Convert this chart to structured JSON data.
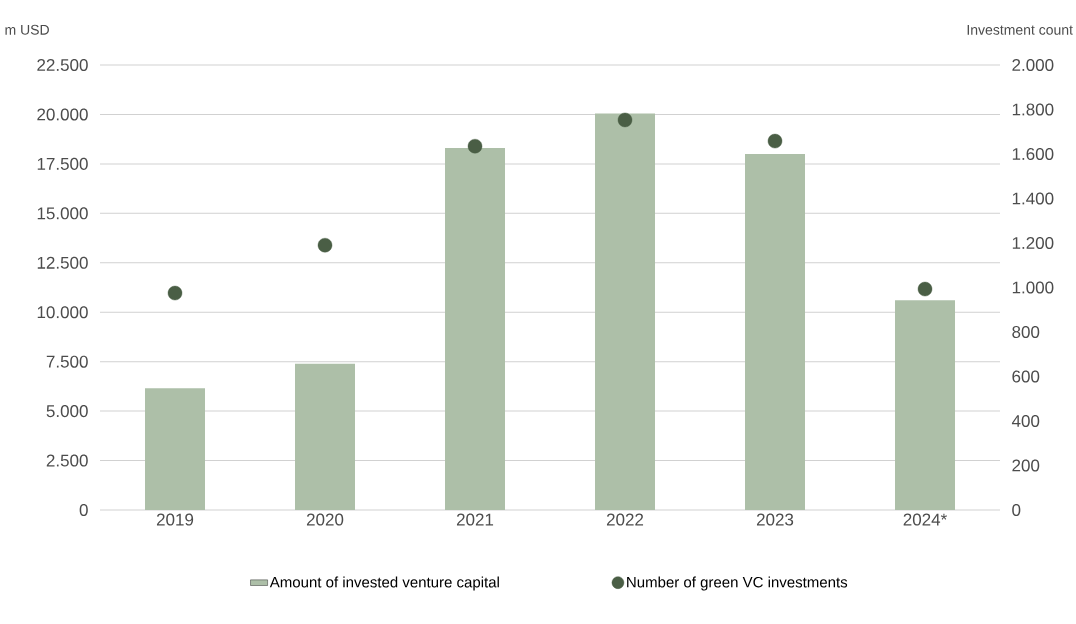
{
  "chart_data": {
    "type": "bar",
    "ylabel": "m USD",
    "y2label": "Investment count",
    "categories": [
      "2019",
      "2020",
      "2021",
      "2022",
      "2023",
      "2024*"
    ],
    "series": [
      {
        "name": "Amount of invested venture capital",
        "color": "#adbfa8",
        "values": [
          6150,
          7400,
          18300,
          20050,
          18000,
          10600
        ]
      },
      {
        "name": "Number of green VC investments",
        "type": "scatter",
        "axis": "y2",
        "color": "#4a5e45",
        "values": [
          975,
          1190,
          1635,
          1753,
          1658,
          993
        ]
      }
    ],
    "ylim": [
      0,
      22500
    ],
    "yticks": [
      {
        "value": 0,
        "label": "0"
      },
      {
        "value": 2500,
        "label": "2.500"
      },
      {
        "value": 5000,
        "label": "5.000"
      },
      {
        "value": 7500,
        "label": "7.500"
      },
      {
        "value": 10000,
        "label": "10.000"
      },
      {
        "value": 12500,
        "label": "12.500"
      },
      {
        "value": 15000,
        "label": "15.000"
      },
      {
        "value": 17500,
        "label": "17.500"
      },
      {
        "value": 20000,
        "label": "20.000"
      },
      {
        "value": 22500,
        "label": "22.500"
      }
    ],
    "y2lim": [
      0,
      2000
    ],
    "y2ticks": [
      0,
      200,
      400,
      600,
      800,
      {
        "value": 1000,
        "label": "1.000"
      },
      {
        "value": 1200,
        "label": "1.200"
      },
      {
        "value": 1400,
        "label": "1.400"
      },
      {
        "value": 1600,
        "label": "1.600"
      },
      {
        "value": 1800,
        "label": "1.800"
      },
      {
        "value": 2000,
        "label": "2.000"
      }
    ],
    "grid": "y",
    "legend": "bottom"
  }
}
